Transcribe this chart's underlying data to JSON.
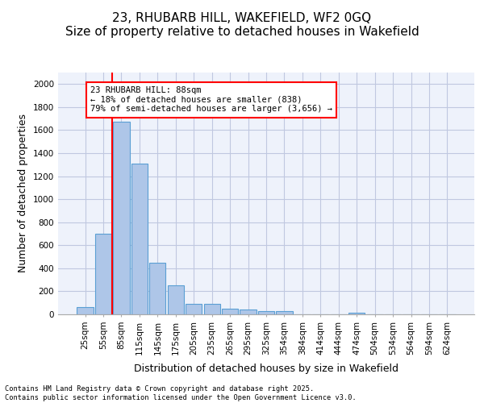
{
  "title_line1": "23, RHUBARB HILL, WAKEFIELD, WF2 0GQ",
  "title_line2": "Size of property relative to detached houses in Wakefield",
  "xlabel": "Distribution of detached houses by size in Wakefield",
  "ylabel": "Number of detached properties",
  "bar_values": [
    65,
    700,
    1670,
    1310,
    450,
    255,
    90,
    90,
    50,
    40,
    30,
    30,
    0,
    0,
    0,
    15,
    0,
    0,
    0,
    0,
    0
  ],
  "bar_labels": [
    "25sqm",
    "55sqm",
    "85sqm",
    "115sqm",
    "145sqm",
    "175sqm",
    "205sqm",
    "235sqm",
    "265sqm",
    "295sqm",
    "325sqm",
    "354sqm",
    "384sqm",
    "414sqm",
    "444sqm",
    "474sqm",
    "504sqm",
    "534sqm",
    "564sqm",
    "594sqm",
    "624sqm"
  ],
  "bar_color": "#aec6e8",
  "bar_edge_color": "#5a9fd4",
  "ylim": [
    0,
    2100
  ],
  "yticks": [
    0,
    200,
    400,
    600,
    800,
    1000,
    1200,
    1400,
    1600,
    1800,
    2000
  ],
  "property_bin_index": 2,
  "red_line_label": "23 RHUBARB HILL: 88sqm",
  "annotation_line2": "← 18% of detached houses are smaller (838)",
  "annotation_line3": "79% of semi-detached houses are larger (3,656) →",
  "footer_line1": "Contains HM Land Registry data © Crown copyright and database right 2025.",
  "footer_line2": "Contains public sector information licensed under the Open Government Licence v3.0.",
  "background_color": "#eef2fb",
  "grid_color": "#c0c8e0",
  "title_fontsize": 11,
  "axis_label_fontsize": 9,
  "tick_fontsize": 7.5
}
